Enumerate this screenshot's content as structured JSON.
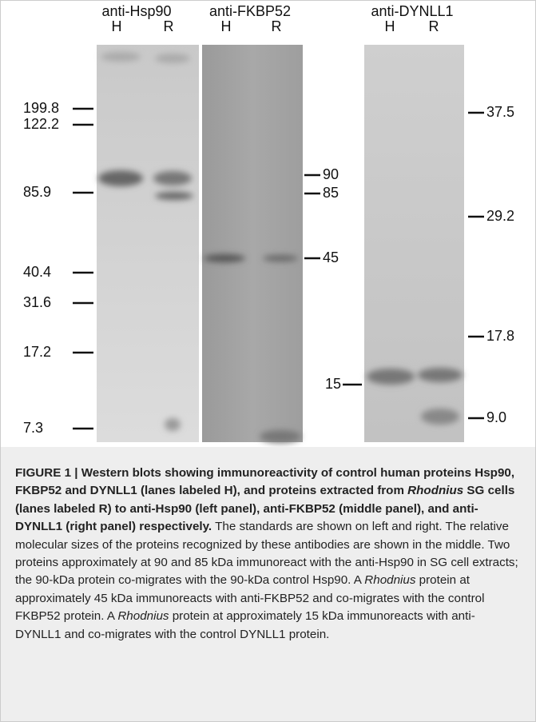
{
  "figure": {
    "panels": [
      {
        "title": "anti-Hsp90",
        "lanes": [
          "H",
          "R"
        ]
      },
      {
        "title": "anti-FKBP52",
        "lanes": [
          "H",
          "R"
        ]
      },
      {
        "title": "anti-DYNLL1",
        "lanes": [
          "H",
          "R"
        ]
      }
    ],
    "left_markers": [
      "199.8",
      "122.2",
      "85.9",
      "40.4",
      "31.6",
      "17.2",
      "7.3"
    ],
    "middle_markers": [
      "90",
      "85",
      "45"
    ],
    "dynll1_left_marker": [
      "15"
    ],
    "right_markers": [
      "37.5",
      "29.2",
      "17.8",
      "9.0"
    ]
  },
  "caption": [
    {
      "text": "FIGURE 1 | Western blots showing immunoreactivity of control human proteins Hsp90, FKBP52 and DYNLL1 (lanes labeled H), and proteins extracted from ",
      "style": "bold"
    },
    {
      "text": "Rhodnius",
      "style": "bold-italic"
    },
    {
      "text": " SG cells (lanes labeled R) to anti-Hsp90 (left panel), anti-FKBP52 (middle panel), and anti-DYNLL1 (right panel) respectively.",
      "style": "bold"
    },
    {
      "text": " The standards are shown on left and right. The relative molecular sizes of the proteins recognized by these antibodies are shown in the middle. Two proteins approximately at 90 and 85 kDa immunoreact with the anti-Hsp90 in SG cell extracts; the 90-kDa protein co-migrates with the 90-kDa control Hsp90. A ",
      "style": "normal"
    },
    {
      "text": "Rhodnius",
      "style": "italic"
    },
    {
      "text": " protein at approximately 45 kDa immunoreacts with anti-FKBP52 and co-migrates with the control FKBP52 protein. A ",
      "style": "normal"
    },
    {
      "text": "Rhodnius",
      "style": "italic"
    },
    {
      "text": " protein at approximately 15 kDa immunoreacts with anti-DYNLL1 and co-migrates with the control DYNLL1 protein.",
      "style": "normal"
    }
  ]
}
